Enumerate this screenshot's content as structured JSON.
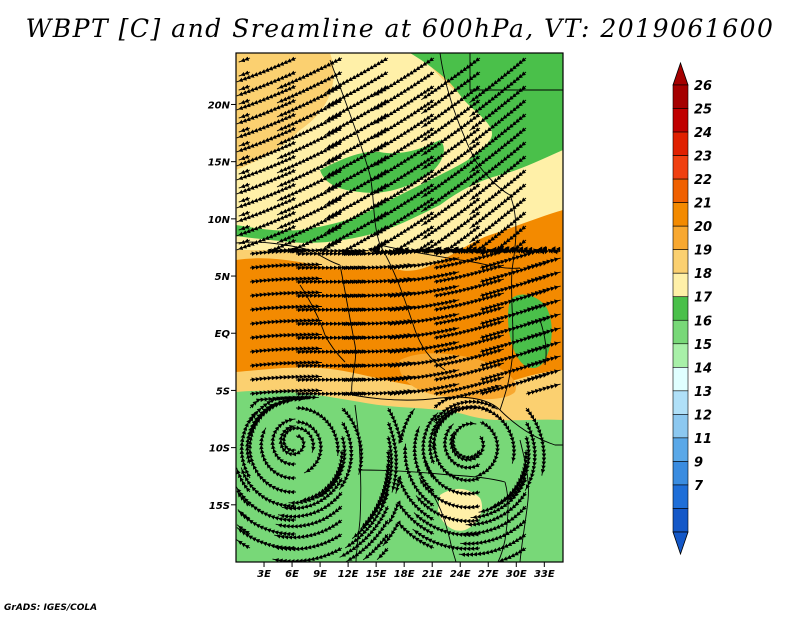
{
  "title": "WBPT [C] and Sreamline at 600hPa, VT: 2019061600",
  "footer": "GrADS: IGES/COLA",
  "map": {
    "lon_min": 0,
    "lon_max": 35,
    "lat_min": -20,
    "lat_max": 24.5,
    "lon_ticks": [
      {
        "value": 3,
        "label": "3E"
      },
      {
        "value": 6,
        "label": "6E"
      },
      {
        "value": 9,
        "label": "9E"
      },
      {
        "value": 12,
        "label": "12E"
      },
      {
        "value": 15,
        "label": "15E"
      },
      {
        "value": 18,
        "label": "18E"
      },
      {
        "value": 21,
        "label": "21E"
      },
      {
        "value": 24,
        "label": "24E"
      },
      {
        "value": 27,
        "label": "27E"
      },
      {
        "value": 30,
        "label": "30E"
      },
      {
        "value": 33,
        "label": "33E"
      }
    ],
    "lat_ticks": [
      {
        "value": 20,
        "label": "20N"
      },
      {
        "value": 15,
        "label": "15N"
      },
      {
        "value": 10,
        "label": "10N"
      },
      {
        "value": 5,
        "label": "5N"
      },
      {
        "value": 0,
        "label": "EQ"
      },
      {
        "value": -5,
        "label": "5S"
      },
      {
        "value": -10,
        "label": "10S"
      },
      {
        "value": -15,
        "label": "15S"
      }
    ]
  },
  "colorbar": {
    "labels": [
      "26",
      "25",
      "24",
      "23",
      "22",
      "21",
      "20",
      "19",
      "18",
      "17",
      "16",
      "15",
      "14",
      "13",
      "12",
      "11",
      "9",
      "7"
    ],
    "colors": [
      "#a50000",
      "#c00000",
      "#e02000",
      "#f04010",
      "#f06000",
      "#f38a00",
      "#f8a830",
      "#fbd070",
      "#fff0a8",
      "#4ac04a",
      "#78d878",
      "#a8f0a8",
      "#e0ffff",
      "#b0e0f8",
      "#8cc8f0",
      "#5aa8e8",
      "#3a8ce0",
      "#1e6ed8",
      "#1458c8"
    ],
    "top_arrow_color": "#a50000",
    "bottom_arrow_color": "#1458c8"
  },
  "fields": {
    "colors": {
      "c16": "#78d878",
      "c17": "#4ac04a",
      "c18": "#fff0a8",
      "c19": "#fbd070",
      "c20": "#f8a830",
      "c21": "#f38a00"
    }
  }
}
